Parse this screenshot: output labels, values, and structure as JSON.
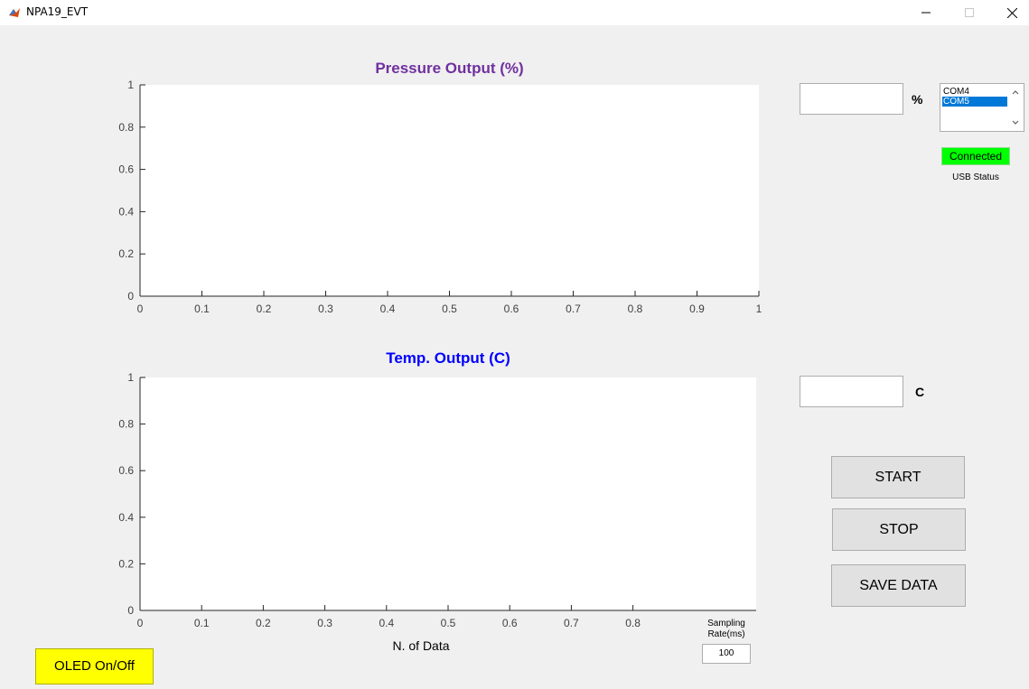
{
  "window": {
    "title": "NPA19_EVT",
    "minimize_icon": "minimize-icon",
    "maximize_icon": "maximize-icon",
    "close_icon": "close-icon"
  },
  "pressure_plot": {
    "title": "Pressure Output (%)",
    "title_color": "#7030a0",
    "x_ticks": [
      "0",
      "0.1",
      "0.2",
      "0.3",
      "0.4",
      "0.5",
      "0.6",
      "0.7",
      "0.8",
      "0.9",
      "1"
    ],
    "y_ticks": [
      "0",
      "0.2",
      "0.4",
      "0.6",
      "0.8",
      "1"
    ]
  },
  "temp_plot": {
    "title": "Temp. Output (C)",
    "title_color": "#0000ff",
    "x_ticks": [
      "0",
      "0.1",
      "0.2",
      "0.3",
      "0.4",
      "0.5",
      "0.6",
      "0.7",
      "0.8"
    ],
    "y_ticks": [
      "0",
      "0.2",
      "0.4",
      "0.6",
      "0.8",
      "1"
    ],
    "xlabel": "N. of Data"
  },
  "pressure_readout": {
    "value": "",
    "unit": "%"
  },
  "temp_readout": {
    "value": "",
    "unit": "C"
  },
  "port_list": {
    "items": [
      "COM4",
      "COM5"
    ],
    "selected": "COM5"
  },
  "usb": {
    "status_text": "Connected",
    "status_color": "#00ff00",
    "label": "USB Status"
  },
  "buttons": {
    "start": "START",
    "stop": "STOP",
    "save": "SAVE DATA",
    "oled": "OLED On/Off"
  },
  "sampling": {
    "label_line1": "Sampling",
    "label_line2": "Rate(ms)",
    "value": "100"
  }
}
